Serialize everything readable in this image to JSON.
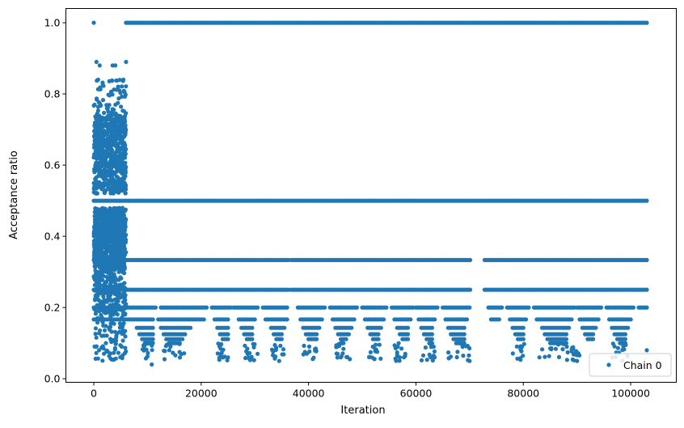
{
  "chart_data": {
    "type": "scatter",
    "title": "",
    "xlabel": "Iteration",
    "ylabel": "Acceptance ratio",
    "xlim": [
      -5200,
      108500
    ],
    "ylim": [
      -0.01,
      1.04
    ],
    "x_ticks": [
      0,
      20000,
      40000,
      60000,
      80000,
      100000
    ],
    "y_ticks": [
      0.0,
      0.2,
      0.4,
      0.6,
      0.8,
      1.0
    ],
    "x_tick_labels": [
      "0",
      "20000",
      "40000",
      "60000",
      "80000",
      "100000"
    ],
    "y_tick_labels": [
      "0.0",
      "0.2",
      "0.4",
      "0.6",
      "0.8",
      "1.0"
    ],
    "legend": {
      "position": "bottom-right",
      "entries": [
        "Chain 0"
      ]
    },
    "grid": false,
    "marker_color": "#1f77b4",
    "series": [
      {
        "name": "Chain 0",
        "levels": [
          {
            "y": 1.0,
            "segments": [
              [
                6000,
                103000
              ]
            ]
          },
          {
            "y": 0.5,
            "segments": [
              [
                0,
                103000
              ]
            ]
          },
          {
            "y": 0.3333,
            "segments": [
              [
                0,
                36300
              ],
              [
                36800,
                70100
              ],
              [
                72800,
                103000
              ]
            ]
          },
          {
            "y": 0.25,
            "segments": [
              [
                0,
                36300
              ],
              [
                36800,
                70100
              ],
              [
                72800,
                103000
              ]
            ]
          },
          {
            "y": 0.2,
            "segments": [
              [
                0,
                11500
              ],
              [
                12500,
                21000
              ],
              [
                22000,
                25500
              ],
              [
                26000,
                30500
              ],
              [
                31500,
                36000
              ],
              [
                38000,
                43000
              ],
              [
                44000,
                49000
              ],
              [
                50000,
                54500
              ],
              [
                55500,
                59500
              ],
              [
                60000,
                64000
              ],
              [
                65000,
                70000
              ],
              [
                73500,
                76000
              ],
              [
                77000,
                81000
              ],
              [
                82000,
                89500
              ],
              [
                90000,
                94500
              ],
              [
                95500,
                100500
              ],
              [
                101500,
                103000
              ]
            ]
          },
          {
            "y": 0.1667,
            "segments": [
              [
                0,
                11000
              ],
              [
                12000,
                20500
              ],
              [
                22500,
                25000
              ],
              [
                27000,
                30000
              ],
              [
                32000,
                36000
              ],
              [
                38500,
                42500
              ],
              [
                44500,
                48500
              ],
              [
                50500,
                54000
              ],
              [
                56000,
                59000
              ],
              [
                60500,
                63500
              ],
              [
                65500,
                69500
              ],
              [
                74000,
                75500
              ],
              [
                77500,
                80500
              ],
              [
                82500,
                89000
              ],
              [
                90500,
                94000
              ],
              [
                96000,
                100000
              ]
            ]
          },
          {
            "y": 0.1429,
            "segments": [
              [
                8000,
                11000
              ],
              [
                12500,
                18000
              ],
              [
                23000,
                25000
              ],
              [
                27500,
                29500
              ],
              [
                33000,
                35500
              ],
              [
                39000,
                42000
              ],
              [
                45000,
                48000
              ],
              [
                51000,
                53500
              ],
              [
                56500,
                58500
              ],
              [
                61000,
                63000
              ],
              [
                66000,
                69000
              ],
              [
                78000,
                80000
              ],
              [
                83500,
                88500
              ],
              [
                91000,
                93500
              ],
              [
                96500,
                99500
              ]
            ]
          },
          {
            "y": 0.125,
            "segments": [
              [
                8500,
                11000
              ],
              [
                13000,
                17000
              ],
              [
                23500,
                25000
              ],
              [
                28000,
                29500
              ],
              [
                33500,
                35000
              ],
              [
                39500,
                41500
              ],
              [
                45500,
                47500
              ],
              [
                51500,
                53000
              ],
              [
                57000,
                58500
              ],
              [
                61500,
                63000
              ],
              [
                66500,
                69000
              ],
              [
                78500,
                80000
              ],
              [
                84000,
                88000
              ],
              [
                91500,
                93000
              ],
              [
                97000,
                99000
              ]
            ]
          },
          {
            "y": 0.1111,
            "segments": [
              [
                9000,
                11000
              ],
              [
                13500,
                16500
              ],
              [
                24000,
                25000
              ],
              [
                28500,
                29500
              ],
              [
                34000,
                35000
              ],
              [
                40000,
                41500
              ],
              [
                46000,
                47000
              ],
              [
                52000,
                53000
              ],
              [
                57500,
                58500
              ],
              [
                62000,
                63000
              ],
              [
                67000,
                69000
              ],
              [
                79000,
                80000
              ],
              [
                84500,
                88000
              ],
              [
                92000,
                93000
              ],
              [
                97500,
                99000
              ]
            ]
          },
          {
            "y": 0.1,
            "segments": [
              [
                9500,
                11000
              ],
              [
                14000,
                16000
              ],
              [
                46000,
                46500
              ],
              [
                62500,
                63000
              ],
              [
                67500,
                69000
              ],
              [
                85000,
                88000
              ],
              [
                98000,
                99000
              ]
            ]
          }
        ],
        "outliers": [
          [
            0,
            1.0
          ],
          [
            500,
            0.89
          ],
          [
            1100,
            0.88
          ],
          [
            3500,
            0.88
          ],
          [
            4000,
            0.88
          ],
          [
            6000,
            0.89
          ],
          [
            800,
            0.84
          ],
          [
            5500,
            0.84
          ],
          [
            10800,
            0.04
          ],
          [
            25000,
            0.06
          ],
          [
            30500,
            0.07
          ],
          [
            46000,
            0.06
          ],
          [
            57000,
            0.06
          ],
          [
            70000,
            0.05
          ],
          [
            83000,
            0.06
          ],
          [
            90000,
            0.05
          ],
          [
            103000,
            0.08
          ]
        ]
      }
    ]
  }
}
